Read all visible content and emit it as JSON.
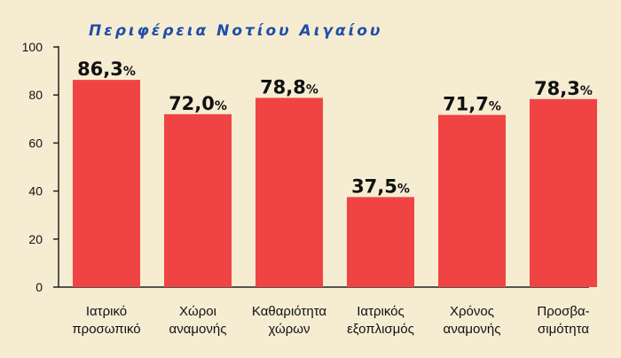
{
  "chart_data": {
    "type": "bar",
    "title": "Περιφέρεια Νοτίου Αιγαίου",
    "categories": [
      [
        "Ιατρικό",
        "προσωπικό"
      ],
      [
        "Χώροι",
        "αναμονής"
      ],
      [
        "Καθαριότητα",
        "χώρων"
      ],
      [
        "Ιατρικός",
        "εξοπλισμός"
      ],
      [
        "Χρόνος",
        "αναμονής"
      ],
      [
        "Προσβα-",
        "σιμότητα"
      ]
    ],
    "values": [
      86.3,
      72.0,
      78.8,
      37.5,
      71.7,
      78.3
    ],
    "value_labels": [
      "86,3",
      "72,0",
      "78,8",
      "37,5",
      "71,7",
      "78,3"
    ],
    "value_suffix": "%",
    "ylim": [
      0,
      100
    ],
    "yticks": [
      0,
      20,
      40,
      60,
      80,
      100
    ],
    "xlabel": "",
    "ylabel": "",
    "grid": false,
    "colors": {
      "bar": "#f04444",
      "title": "#1f4ea8",
      "axis": "#222222",
      "background": "#f5ecd2"
    }
  }
}
